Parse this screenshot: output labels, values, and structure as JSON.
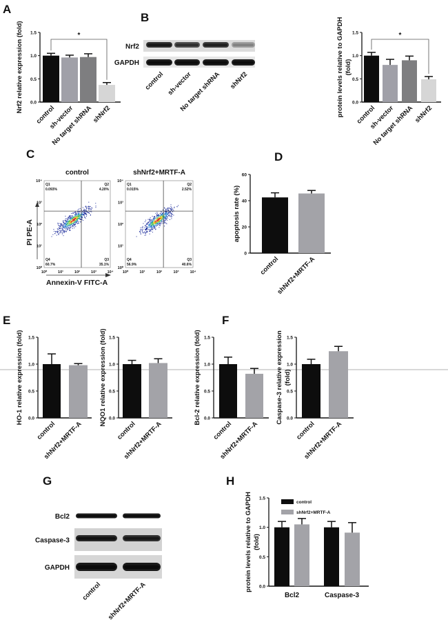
{
  "panel_labels": {
    "A": "A",
    "B": "B",
    "C": "C",
    "D": "D",
    "E": "E",
    "F": "F",
    "G": "G",
    "H": "H"
  },
  "colors": {
    "control": "#0d0d0d",
    "sh_vector": "#a0a0a8",
    "no_target": "#7e7e80",
    "shNrf2": "#d6d6d6",
    "mrtf": "#a3a3a8",
    "separator_line": "#b0b0b0"
  },
  "blots": {
    "B": {
      "rows": [
        "Nrf2",
        "GAPDH"
      ],
      "lanes": [
        "control",
        "sh-vector",
        "No target shRNA",
        "shNrf2"
      ],
      "intensity": [
        [
          0.85,
          0.7,
          0.8,
          0.3
        ],
        [
          0.95,
          0.95,
          0.95,
          0.95
        ]
      ]
    },
    "G": {
      "rows": [
        "Bcl2",
        "Caspase-3",
        "GAPDH"
      ],
      "lanes": [
        "control",
        "shNrf2+MRTF-A"
      ],
      "intensity": [
        [
          0.95,
          0.95
        ],
        [
          0.9,
          0.85
        ],
        [
          0.98,
          0.98
        ]
      ]
    }
  },
  "flow_cytometry": {
    "x_label": "Annexin-V FITC-A",
    "y_label": "PI PE-A",
    "tick_labels": [
      "10⁰",
      "10¹",
      "10²",
      "10³",
      "10⁴"
    ],
    "plots": [
      {
        "title": "control",
        "Q1": "Q1",
        "Q1_value": "0.093%",
        "Q2": "Q2",
        "Q2_value": "4.20%",
        "Q3": "Q3",
        "Q3_value": "35.1%",
        "Q4": "Q4",
        "Q4_value": "60.7%"
      },
      {
        "title": "shNrf2+MRTF-A",
        "Q1": "Q1",
        "Q1_value": "0.015%",
        "Q2": "Q2",
        "Q2_value": "2.52%",
        "Q3": "Q3",
        "Q3_value": "40.6%",
        "Q4": "Q4",
        "Q4_value": "56.9%"
      }
    ]
  },
  "chart_data": [
    {
      "id": "A",
      "type": "bar",
      "ylabel": [
        "Nrf2 relative expression (fold)"
      ],
      "categories": [
        "control",
        "sh-vector",
        "No target shRNA",
        "shNrf2"
      ],
      "values": [
        1.0,
        0.96,
        0.97,
        0.37
      ],
      "errors": [
        0.05,
        0.05,
        0.07,
        0.05
      ],
      "color_keys": [
        "control",
        "sh_vector",
        "no_target",
        "shNrf2"
      ],
      "ylim": [
        0,
        1.5
      ],
      "yticks": [
        "0.0",
        "0.5",
        "1.0",
        "1.5"
      ],
      "significance": {
        "from": 0,
        "to": 3,
        "label": "*"
      }
    },
    {
      "id": "B",
      "type": "bar",
      "ylabel": [
        "protein levels relative to GAPDH",
        "(fold)"
      ],
      "categories": [
        "control",
        "sh-vector",
        "No target shRNA",
        "shNrf2"
      ],
      "values": [
        1.0,
        0.8,
        0.9,
        0.49
      ],
      "errors": [
        0.07,
        0.12,
        0.09,
        0.06
      ],
      "color_keys": [
        "control",
        "sh_vector",
        "no_target",
        "shNrf2"
      ],
      "ylim": [
        0,
        1.5
      ],
      "yticks": [
        "0.0",
        "0.5",
        "1.0",
        "1.5"
      ],
      "significance": {
        "from": 0,
        "to": 3,
        "label": "*"
      }
    },
    {
      "id": "D",
      "type": "bar",
      "ylabel": [
        "apoptosis rate (%)"
      ],
      "categories": [
        "control",
        "shNrf2+MRTF-A"
      ],
      "values": [
        42.5,
        45.5
      ],
      "errors": [
        3.5,
        2.3
      ],
      "color_keys": [
        "control",
        "mrtf"
      ],
      "ylim": [
        0,
        60
      ],
      "yticks": [
        "0",
        "20",
        "40",
        "60"
      ]
    },
    {
      "id": "E1",
      "type": "bar",
      "ylabel": [
        "HO-1 relative expression (fold)"
      ],
      "categories": [
        "control",
        "shNrf2+MRTF-A"
      ],
      "values": [
        1.0,
        0.98
      ],
      "errors": [
        0.19,
        0.03
      ],
      "color_keys": [
        "control",
        "mrtf"
      ],
      "ylim": [
        0,
        1.5
      ],
      "yticks": [
        "0.0",
        "0.5",
        "1.0",
        "1.5"
      ]
    },
    {
      "id": "E2",
      "type": "bar",
      "ylabel": [
        "NQO1 relative expression (fold)"
      ],
      "categories": [
        "control",
        "shNrf2+MRTF-A"
      ],
      "values": [
        1.0,
        1.02
      ],
      "errors": [
        0.07,
        0.08
      ],
      "color_keys": [
        "control",
        "mrtf"
      ],
      "ylim": [
        0,
        1.5
      ],
      "yticks": [
        "0.0",
        "0.5",
        "1.0",
        "1.5"
      ]
    },
    {
      "id": "F1",
      "type": "bar",
      "ylabel": [
        "Bcl-2 relative expression (fold)"
      ],
      "categories": [
        "control",
        "shNrf2+MRTF-A"
      ],
      "values": [
        1.0,
        0.82
      ],
      "errors": [
        0.13,
        0.1
      ],
      "color_keys": [
        "control",
        "mrtf"
      ],
      "ylim": [
        0,
        1.5
      ],
      "yticks": [
        "0.0",
        "0.5",
        "1.0",
        "1.5"
      ]
    },
    {
      "id": "F2",
      "type": "bar",
      "ylabel": [
        "Caspase-3 relative expression",
        "(fold)"
      ],
      "categories": [
        "control",
        "shNrf2+MRTF-A"
      ],
      "values": [
        1.0,
        1.24
      ],
      "errors": [
        0.09,
        0.09
      ],
      "color_keys": [
        "control",
        "mrtf"
      ],
      "ylim": [
        0,
        1.5
      ],
      "yticks": [
        "0.0",
        "0.5",
        "1.0",
        "1.5"
      ]
    },
    {
      "id": "H",
      "type": "bar",
      "grouped": true,
      "ylabel": [
        "protein levels relative to GAPDH",
        "(fold)"
      ],
      "categories": [
        "Bcl2",
        "Caspase-3"
      ],
      "series": [
        {
          "name": "control",
          "values": [
            1.0,
            1.0
          ],
          "errors": [
            0.1,
            0.1
          ],
          "color_key": "control"
        },
        {
          "name": "shNrf2+MRTF-A",
          "values": [
            1.05,
            0.91
          ],
          "errors": [
            0.1,
            0.17
          ],
          "color_key": "mrtf"
        }
      ],
      "ylim": [
        0,
        1.5
      ],
      "yticks": [
        "0.0",
        "0.5",
        "1.0",
        "1.5"
      ],
      "legend": "top-left"
    }
  ]
}
